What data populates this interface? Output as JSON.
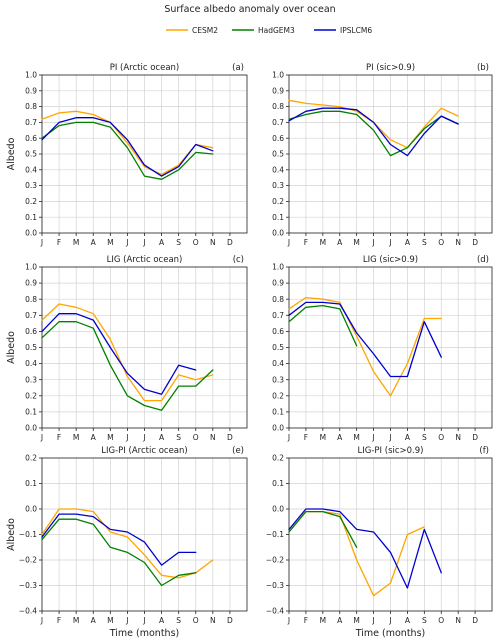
{
  "figure": {
    "title": "Surface albedo anomaly over ocean",
    "legend": [
      {
        "name": "CESM2",
        "color": "#ffa500"
      },
      {
        "name": "HadGEM3",
        "color": "#008000"
      },
      {
        "name": "IPSLCM6",
        "color": "#0000cd"
      }
    ]
  },
  "chart_data": [
    {
      "type": "line",
      "title": "PI (Arctic ocean)",
      "letter": "(a)",
      "xlabel": "",
      "ylabel": "Albedo",
      "categories": [
        "J",
        "F",
        "M",
        "A",
        "M",
        "J",
        "J",
        "A",
        "S",
        "O",
        "N",
        "D"
      ],
      "ylim": [
        0,
        1.0
      ],
      "yticks": [
        "0.0",
        "0.1",
        "0.2",
        "0.3",
        "0.4",
        "0.5",
        "0.6",
        "0.7",
        "0.8",
        "0.9",
        "1.0"
      ],
      "grid": true,
      "series": [
        {
          "name": "CESM2",
          "color": "#ffa500",
          "values": [
            0.72,
            0.76,
            0.77,
            0.75,
            0.7,
            0.57,
            0.42,
            0.37,
            0.43,
            0.56,
            0.54,
            null
          ]
        },
        {
          "name": "HadGEM3",
          "color": "#008000",
          "values": [
            0.6,
            0.68,
            0.7,
            0.7,
            0.67,
            0.54,
            0.36,
            0.34,
            0.4,
            0.51,
            0.5,
            null
          ]
        },
        {
          "name": "IPSLCM6",
          "color": "#0000cd",
          "values": [
            0.59,
            0.7,
            0.73,
            0.73,
            0.7,
            0.59,
            0.43,
            0.36,
            0.42,
            0.56,
            0.52,
            null
          ]
        }
      ]
    },
    {
      "type": "line",
      "title": "PI (sic>0.9)",
      "letter": "(b)",
      "xlabel": "",
      "ylabel": "",
      "categories": [
        "J",
        "F",
        "M",
        "A",
        "M",
        "J",
        "J",
        "A",
        "S",
        "O",
        "N",
        "D"
      ],
      "ylim": [
        0,
        1.0
      ],
      "yticks": [
        "0.0",
        "0.1",
        "0.2",
        "0.3",
        "0.4",
        "0.5",
        "0.6",
        "0.7",
        "0.8",
        "0.9",
        "1.0"
      ],
      "grid": true,
      "series": [
        {
          "name": "CESM2",
          "color": "#ffa500",
          "values": [
            0.84,
            0.82,
            0.81,
            0.8,
            0.77,
            0.7,
            0.59,
            0.54,
            0.67,
            0.79,
            0.74,
            null
          ]
        },
        {
          "name": "HadGEM3",
          "color": "#008000",
          "values": [
            0.72,
            0.75,
            0.77,
            0.77,
            0.75,
            0.65,
            0.49,
            0.54,
            0.66,
            0.74,
            0.69,
            null
          ]
        },
        {
          "name": "IPSLCM6",
          "color": "#0000cd",
          "values": [
            0.71,
            0.77,
            0.79,
            0.79,
            0.78,
            0.7,
            0.56,
            0.49,
            0.63,
            0.74,
            0.69,
            null
          ]
        }
      ]
    },
    {
      "type": "line",
      "title": "LIG (Arctic ocean)",
      "letter": "(c)",
      "xlabel": "",
      "ylabel": "Albedo",
      "categories": [
        "J",
        "F",
        "M",
        "A",
        "M",
        "J",
        "J",
        "A",
        "S",
        "O",
        "N",
        "D"
      ],
      "ylim": [
        0,
        1.0
      ],
      "yticks": [
        "0.0",
        "0.1",
        "0.2",
        "0.3",
        "0.4",
        "0.5",
        "0.6",
        "0.7",
        "0.8",
        "0.9",
        "1.0"
      ],
      "grid": true,
      "series": [
        {
          "name": "CESM2",
          "color": "#ffa500",
          "values": [
            0.67,
            0.77,
            0.75,
            0.71,
            0.55,
            0.32,
            0.17,
            0.17,
            0.33,
            0.3,
            0.33,
            null
          ]
        },
        {
          "name": "HadGEM3",
          "color": "#008000",
          "values": [
            0.56,
            0.66,
            0.66,
            0.62,
            0.39,
            0.2,
            0.14,
            0.11,
            0.26,
            0.26,
            0.36,
            null
          ]
        },
        {
          "name": "IPSLCM6",
          "color": "#0000cd",
          "values": [
            0.6,
            0.71,
            0.71,
            0.67,
            0.5,
            0.34,
            0.24,
            0.21,
            0.39,
            0.36,
            null,
            null
          ]
        }
      ]
    },
    {
      "type": "line",
      "title": "LIG (sic>0.9)",
      "letter": "(d)",
      "xlabel": "",
      "ylabel": "",
      "categories": [
        "J",
        "F",
        "M",
        "A",
        "M",
        "J",
        "J",
        "A",
        "S",
        "O",
        "N",
        "D"
      ],
      "ylim": [
        0,
        1.0
      ],
      "yticks": [
        "0.0",
        "0.1",
        "0.2",
        "0.3",
        "0.4",
        "0.5",
        "0.6",
        "0.7",
        "0.8",
        "0.9",
        "1.0"
      ],
      "grid": true,
      "series": [
        {
          "name": "CESM2",
          "color": "#ffa500",
          "values": [
            0.74,
            0.81,
            0.8,
            0.78,
            0.57,
            0.35,
            0.2,
            0.4,
            0.68,
            0.68,
            null,
            null
          ]
        },
        {
          "name": "HadGEM3",
          "color": "#008000",
          "values": [
            0.66,
            0.75,
            0.76,
            0.74,
            0.51,
            null,
            null,
            null,
            null,
            null,
            null,
            null
          ]
        },
        {
          "name": "IPSLCM6",
          "color": "#0000cd",
          "values": [
            0.7,
            0.78,
            0.78,
            0.77,
            0.59,
            0.46,
            0.32,
            0.32,
            0.66,
            0.44,
            null,
            null
          ]
        }
      ]
    },
    {
      "type": "line",
      "title": "LIG-PI (Arctic ocean)",
      "letter": "(e)",
      "xlabel": "Time (months)",
      "ylabel": "Albedo",
      "categories": [
        "J",
        "F",
        "M",
        "A",
        "M",
        "J",
        "J",
        "A",
        "S",
        "O",
        "N",
        "D"
      ],
      "ylim": [
        -0.4,
        0.2
      ],
      "yticks": [
        "−0.4",
        "−0.3",
        "−0.2",
        "−0.1",
        "0.0",
        "0.1",
        "0.2"
      ],
      "grid": true,
      "series": [
        {
          "name": "CESM2",
          "color": "#ffa500",
          "values": [
            -0.1,
            0.0,
            0.0,
            -0.01,
            -0.09,
            -0.11,
            -0.18,
            -0.26,
            -0.27,
            -0.25,
            -0.2,
            null
          ]
        },
        {
          "name": "HadGEM3",
          "color": "#008000",
          "values": [
            -0.12,
            -0.04,
            -0.04,
            -0.06,
            -0.15,
            -0.17,
            -0.21,
            -0.3,
            -0.26,
            -0.25,
            null,
            null
          ]
        },
        {
          "name": "IPSLCM6",
          "color": "#0000cd",
          "values": [
            -0.11,
            -0.02,
            -0.02,
            -0.03,
            -0.08,
            -0.09,
            -0.13,
            -0.22,
            -0.17,
            -0.17,
            null,
            null
          ]
        }
      ]
    },
    {
      "type": "line",
      "title": "LIG-PI (sic>0.9)",
      "letter": "(f)",
      "xlabel": "Time (months)",
      "ylabel": "",
      "categories": [
        "J",
        "F",
        "M",
        "A",
        "M",
        "J",
        "J",
        "A",
        "S",
        "O",
        "N",
        "D"
      ],
      "ylim": [
        -0.4,
        0.2
      ],
      "yticks": [
        "−0.4",
        "−0.3",
        "−0.2",
        "−0.1",
        "0.0",
        "0.1",
        "0.2"
      ],
      "grid": true,
      "series": [
        {
          "name": "CESM2",
          "color": "#ffa500",
          "values": [
            -0.09,
            -0.01,
            -0.01,
            -0.02,
            -0.2,
            -0.34,
            -0.29,
            -0.1,
            -0.07,
            null,
            null,
            null
          ]
        },
        {
          "name": "HadGEM3",
          "color": "#008000",
          "values": [
            -0.09,
            -0.01,
            -0.01,
            -0.03,
            -0.15,
            null,
            null,
            null,
            null,
            null,
            null,
            null
          ]
        },
        {
          "name": "IPSLCM6",
          "color": "#0000cd",
          "values": [
            -0.08,
            0.0,
            0.0,
            -0.01,
            -0.08,
            -0.09,
            -0.17,
            -0.31,
            -0.08,
            -0.25,
            null,
            null
          ]
        }
      ]
    }
  ]
}
